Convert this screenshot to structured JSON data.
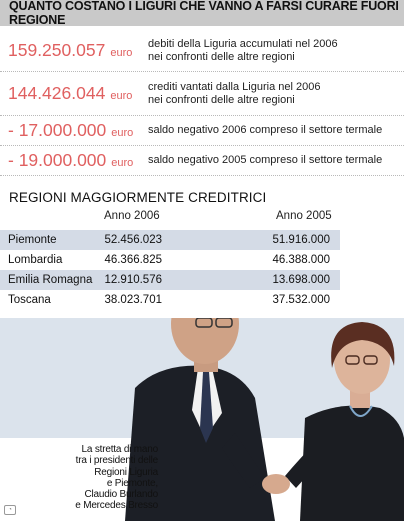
{
  "header": {
    "title": "QUANTO COSTANO I LIGURI CHE VANNO A FARSI CURARE FUORI REGIONE"
  },
  "stats": [
    {
      "amount": "159.250.057",
      "unit": "euro",
      "desc_line1": "debiti della Liguria accumulati nel 2006",
      "desc_line2": "nei confronti delle altre regioni"
    },
    {
      "amount": "144.426.044",
      "unit": "euro",
      "desc_line1": "crediti vantati dalla Liguria nel 2006",
      "desc_line2": "nei confronti delle altre regioni"
    },
    {
      "amount": "- 17.000.000",
      "unit": "euro",
      "desc_line1": "saldo negativo 2006 compreso il settore termale",
      "desc_line2": ""
    },
    {
      "amount": "- 19.000.000",
      "unit": "euro",
      "desc_line1": "saldo negativo 2005 compreso il settore termale",
      "desc_line2": ""
    }
  ],
  "table": {
    "title": "REGIONI MAGGIORMENTE CREDITRICI",
    "col_2006": "Anno  2006",
    "col_2005": "Anno 2005",
    "rows": [
      {
        "region": "Piemonte",
        "y2006": "52.456.023",
        "y2005": "51.916.000"
      },
      {
        "region": "Lombardia",
        "y2006": "46.366.825",
        "y2005": "46.388.000"
      },
      {
        "region": "Emilia Romagna",
        "y2006": "12.910.576",
        "y2005": "13.698.000"
      },
      {
        "region": "Toscana",
        "y2006": "38.023.701",
        "y2005": "37.532.000"
      }
    ]
  },
  "caption": {
    "lines": [
      "La stretta di mano",
      "tra i presidenti delle",
      "Regioni Liguria",
      "e Piemonte,",
      "Claudio Burlando",
      "e Mercedes Bresso"
    ]
  },
  "colors": {
    "amount": "#e06060",
    "header_bg": "#c9c9c9",
    "row_shade": "#d4dbe6"
  },
  "icons": {
    "corner_logo": "publisher-logo-icon"
  }
}
